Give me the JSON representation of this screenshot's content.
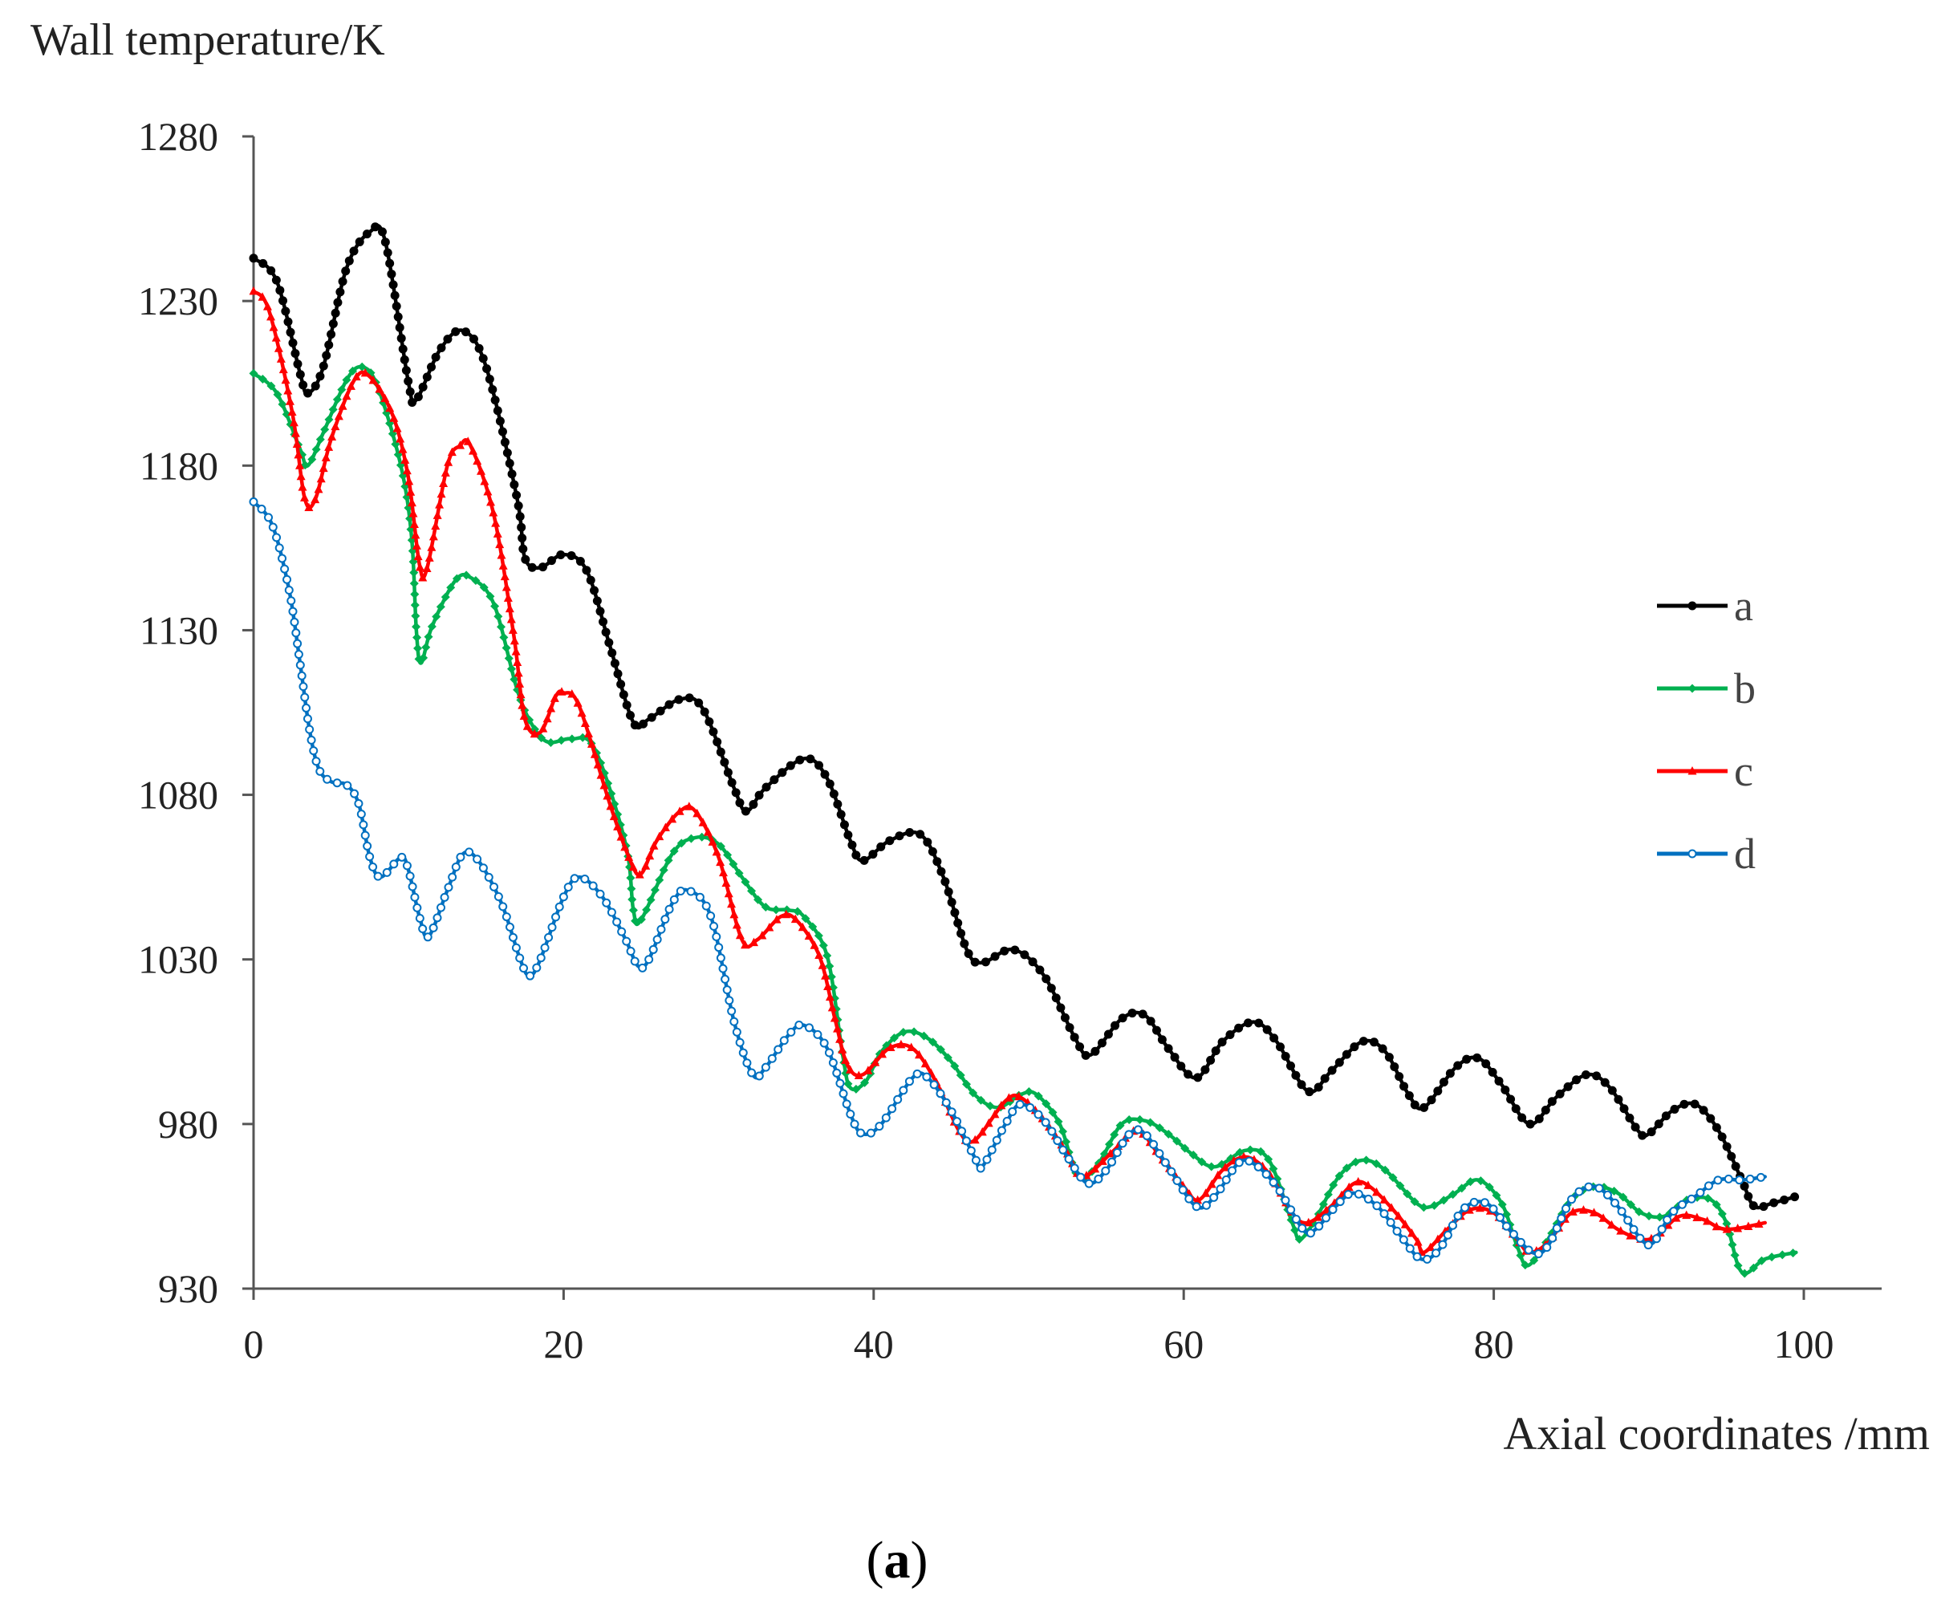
{
  "chart_data": {
    "type": "line",
    "ylabel": "Wall temperature/K",
    "xlabel": "Axial coordinates /mm",
    "xlim": [
      0,
      100
    ],
    "ylim": [
      930,
      1280
    ],
    "xticks": [
      "0",
      "20",
      "40",
      "60",
      "80",
      "100"
    ],
    "yticks": [
      "930",
      "980",
      "1030",
      "1080",
      "1130",
      "1180",
      "1230",
      "1280"
    ],
    "grid": false,
    "legend_position": "right",
    "caption_open": "(",
    "caption_label": "a",
    "caption_close": ")",
    "series": [
      {
        "name": "a",
        "color": "#000000",
        "marker": "dot",
        "points": [
          [
            0,
            1243
          ],
          [
            1.5,
            1236
          ],
          [
            3,
            1208
          ],
          [
            3.5,
            1202
          ],
          [
            4.5,
            1210
          ],
          [
            6,
            1240
          ],
          [
            7.5,
            1251
          ],
          [
            8.5,
            1248
          ],
          [
            10,
            1205
          ],
          [
            10.5,
            1200
          ],
          [
            12,
            1215
          ],
          [
            13.5,
            1221
          ],
          [
            15,
            1210
          ],
          [
            17,
            1170
          ],
          [
            17.5,
            1152
          ],
          [
            18.5,
            1149
          ],
          [
            20,
            1153
          ],
          [
            21.5,
            1148
          ],
          [
            23,
            1125
          ],
          [
            24.5,
            1102
          ],
          [
            25.5,
            1103
          ],
          [
            27.5,
            1109
          ],
          [
            29,
            1106
          ],
          [
            31,
            1082
          ],
          [
            31.8,
            1075
          ],
          [
            33,
            1082
          ],
          [
            35.5,
            1091
          ],
          [
            37,
            1085
          ],
          [
            38.5,
            1066
          ],
          [
            39.3,
            1060
          ],
          [
            41,
            1066
          ],
          [
            43,
            1068
          ],
          [
            44.5,
            1055
          ],
          [
            46,
            1033
          ],
          [
            47,
            1029
          ],
          [
            49,
            1033
          ],
          [
            51,
            1025
          ],
          [
            53,
            1006
          ],
          [
            54,
            1001
          ],
          [
            56,
            1012
          ],
          [
            57.5,
            1013
          ],
          [
            59,
            1003
          ],
          [
            60.8,
            994
          ],
          [
            62.5,
            1005
          ],
          [
            64.5,
            1011
          ],
          [
            66,
            1005
          ],
          [
            68,
            990
          ],
          [
            69.5,
            996
          ],
          [
            71.5,
            1005
          ],
          [
            73,
            1002
          ],
          [
            74.5,
            989
          ],
          [
            75.5,
            985
          ],
          [
            77.5,
            997
          ],
          [
            79,
            1000
          ],
          [
            80.5,
            992
          ],
          [
            82.3,
            980
          ],
          [
            84,
            988
          ],
          [
            86,
            995
          ],
          [
            87.5,
            991
          ],
          [
            89.3,
            978
          ],
          [
            90,
            977
          ],
          [
            91.5,
            984
          ],
          [
            93,
            986
          ],
          [
            94.5,
            978
          ],
          [
            96,
            963
          ],
          [
            96.8,
            955
          ],
          [
            98,
            956
          ],
          [
            99.5,
            958
          ]
        ]
      },
      {
        "name": "b",
        "color": "#00b050",
        "marker": "diamond",
        "points": [
          [
            0,
            1208
          ],
          [
            1.5,
            1202
          ],
          [
            3,
            1185
          ],
          [
            3.5,
            1180
          ],
          [
            4.5,
            1190
          ],
          [
            6,
            1206
          ],
          [
            7,
            1210
          ],
          [
            8,
            1204
          ],
          [
            9.5,
            1180
          ],
          [
            10.2,
            1158
          ],
          [
            10.5,
            1130
          ],
          [
            10.8,
            1120
          ],
          [
            11.5,
            1131
          ],
          [
            13,
            1145
          ],
          [
            14,
            1146
          ],
          [
            15.5,
            1138
          ],
          [
            17,
            1112
          ],
          [
            18,
            1101
          ],
          [
            19,
            1096
          ],
          [
            20.5,
            1097
          ],
          [
            22,
            1094
          ],
          [
            24,
            1065
          ],
          [
            24.5,
            1045
          ],
          [
            25,
            1042
          ],
          [
            27,
            1062
          ],
          [
            28.5,
            1067
          ],
          [
            30,
            1065
          ],
          [
            31.5,
            1055
          ],
          [
            33,
            1046
          ],
          [
            34.5,
            1045
          ],
          [
            35.5,
            1043
          ],
          [
            37,
            1031
          ],
          [
            38,
            1001
          ],
          [
            38.5,
            991
          ],
          [
            39.5,
            993
          ],
          [
            40.5,
            1002
          ],
          [
            42,
            1008
          ],
          [
            43.5,
            1006
          ],
          [
            45,
            999
          ],
          [
            46.5,
            989
          ],
          [
            48,
            985
          ],
          [
            49.5,
            989
          ],
          [
            50.5,
            989
          ],
          [
            52,
            980
          ],
          [
            53.2,
            964
          ],
          [
            54.5,
            968
          ],
          [
            56,
            980
          ],
          [
            57.5,
            981
          ],
          [
            59,
            977
          ],
          [
            60.5,
            971
          ],
          [
            62,
            967
          ],
          [
            64,
            972
          ],
          [
            65.5,
            969
          ],
          [
            67,
            950
          ],
          [
            67.5,
            945
          ],
          [
            68.5,
            951
          ],
          [
            70,
            964
          ],
          [
            71.5,
            969
          ],
          [
            73,
            966
          ],
          [
            75,
            956
          ],
          [
            76,
            955
          ],
          [
            77.5,
            959
          ],
          [
            79,
            963
          ],
          [
            80.5,
            956
          ],
          [
            81.5,
            943
          ],
          [
            82.2,
            937
          ],
          [
            83.5,
            945
          ],
          [
            85,
            957
          ],
          [
            86.5,
            961
          ],
          [
            88,
            959
          ],
          [
            89.5,
            953
          ],
          [
            91,
            952
          ],
          [
            92.5,
            957
          ],
          [
            94,
            957
          ],
          [
            95,
            950
          ],
          [
            96,
            935
          ],
          [
            97.5,
            939
          ],
          [
            99.5,
            941
          ]
        ]
      },
      {
        "name": "c",
        "color": "#ff0000",
        "marker": "triangle",
        "points": [
          [
            0,
            1233
          ],
          [
            1,
            1227
          ],
          [
            2.5,
            1196
          ],
          [
            3.3,
            1170
          ],
          [
            4,
            1170
          ],
          [
            5,
            1188
          ],
          [
            6.5,
            1206
          ],
          [
            7.5,
            1207
          ],
          [
            9,
            1195
          ],
          [
            10,
            1176
          ],
          [
            10.7,
            1150
          ],
          [
            11.2,
            1149
          ],
          [
            12.5,
            1180
          ],
          [
            13.3,
            1186
          ],
          [
            14,
            1186
          ],
          [
            15.5,
            1165
          ],
          [
            16.8,
            1128
          ],
          [
            17.5,
            1103
          ],
          [
            18.5,
            1099
          ],
          [
            19.5,
            1110
          ],
          [
            20,
            1111
          ],
          [
            21,
            1107
          ],
          [
            23,
            1077
          ],
          [
            24.3,
            1060
          ],
          [
            25,
            1056
          ],
          [
            26,
            1066
          ],
          [
            27.5,
            1075
          ],
          [
            28.5,
            1075
          ],
          [
            30,
            1061
          ],
          [
            31.5,
            1036
          ],
          [
            32.5,
            1036
          ],
          [
            34,
            1043
          ],
          [
            35,
            1042
          ],
          [
            36.5,
            1031
          ],
          [
            37.5,
            1012
          ],
          [
            38.3,
            998
          ],
          [
            39.3,
            995
          ],
          [
            41,
            1003
          ],
          [
            42.5,
            1003
          ],
          [
            44,
            993
          ],
          [
            45.5,
            978
          ],
          [
            46.5,
            975
          ],
          [
            48.5,
            987
          ],
          [
            49.5,
            988
          ],
          [
            51,
            981
          ],
          [
            52.5,
            971
          ],
          [
            53.5,
            964
          ],
          [
            55.5,
            972
          ],
          [
            57,
            978
          ],
          [
            58.5,
            970
          ],
          [
            60,
            961
          ],
          [
            61,
            957
          ],
          [
            62.5,
            966
          ],
          [
            64,
            970
          ],
          [
            65.5,
            965
          ],
          [
            67,
            953
          ],
          [
            68,
            950
          ],
          [
            69.5,
            955
          ],
          [
            71,
            962
          ],
          [
            72,
            961
          ],
          [
            73.5,
            954
          ],
          [
            75,
            945
          ],
          [
            75.5,
            941
          ],
          [
            77,
            948
          ],
          [
            78.5,
            954
          ],
          [
            80,
            953
          ],
          [
            81.5,
            945
          ],
          [
            82.3,
            941
          ],
          [
            83.5,
            944
          ],
          [
            85,
            953
          ],
          [
            86.5,
            953
          ],
          [
            88,
            948
          ],
          [
            89.5,
            945
          ],
          [
            90.5,
            946
          ],
          [
            92,
            952
          ],
          [
            93.5,
            951
          ],
          [
            95,
            948
          ],
          [
            97.5,
            950
          ]
        ]
      },
      {
        "name": "d",
        "color": "#0070c0",
        "marker": "circle",
        "points": [
          [
            0,
            1169
          ],
          [
            1.2,
            1162
          ],
          [
            2.3,
            1142
          ],
          [
            3,
            1120
          ],
          [
            3.6,
            1100
          ],
          [
            4.2,
            1088
          ],
          [
            5,
            1084
          ],
          [
            6,
            1083
          ],
          [
            6.8,
            1077
          ],
          [
            7.5,
            1061
          ],
          [
            8.2,
            1055
          ],
          [
            9.5,
            1061
          ],
          [
            10,
            1057
          ],
          [
            10.7,
            1043
          ],
          [
            11.3,
            1037
          ],
          [
            12.5,
            1051
          ],
          [
            13.5,
            1062
          ],
          [
            14.5,
            1060
          ],
          [
            16,
            1047
          ],
          [
            17.2,
            1030
          ],
          [
            17.8,
            1025
          ],
          [
            18.5,
            1030
          ],
          [
            20,
            1049
          ],
          [
            21,
            1055
          ],
          [
            22.5,
            1049
          ],
          [
            24,
            1036
          ],
          [
            24.8,
            1028
          ],
          [
            25.5,
            1030
          ],
          [
            27,
            1047
          ],
          [
            28,
            1051
          ],
          [
            29.5,
            1043
          ],
          [
            31,
            1011
          ],
          [
            32.2,
            995
          ],
          [
            33,
            997
          ],
          [
            34.5,
            1007
          ],
          [
            35.5,
            1010
          ],
          [
            37,
            1003
          ],
          [
            38.5,
            983
          ],
          [
            39.3,
            977
          ],
          [
            40.5,
            980
          ],
          [
            42.5,
            994
          ],
          [
            43.5,
            994
          ],
          [
            45,
            984
          ],
          [
            46.5,
            970
          ],
          [
            47,
            967
          ],
          [
            48.5,
            980
          ],
          [
            49.5,
            986
          ],
          [
            51,
            981
          ],
          [
            52.5,
            970
          ],
          [
            53.8,
            962
          ],
          [
            55,
            966
          ],
          [
            56.5,
            977
          ],
          [
            57.5,
            977
          ],
          [
            59,
            967
          ],
          [
            60.8,
            955
          ],
          [
            62,
            958
          ],
          [
            63.5,
            968
          ],
          [
            64.5,
            968
          ],
          [
            66,
            961
          ],
          [
            67.7,
            948
          ],
          [
            68.5,
            948
          ],
          [
            70,
            956
          ],
          [
            71,
            959
          ],
          [
            72.5,
            955
          ],
          [
            74,
            946
          ],
          [
            75.3,
            939
          ],
          [
            76.5,
            942
          ],
          [
            78,
            954
          ],
          [
            79.5,
            956
          ],
          [
            81,
            948
          ],
          [
            82.5,
            941
          ],
          [
            83.5,
            943
          ],
          [
            85,
            957
          ],
          [
            86.5,
            961
          ],
          [
            88,
            955
          ],
          [
            89.5,
            945
          ],
          [
            90.3,
            944
          ],
          [
            91.5,
            953
          ],
          [
            93,
            958
          ],
          [
            94.5,
            963
          ],
          [
            96,
            963
          ],
          [
            97.5,
            964
          ]
        ]
      }
    ]
  }
}
